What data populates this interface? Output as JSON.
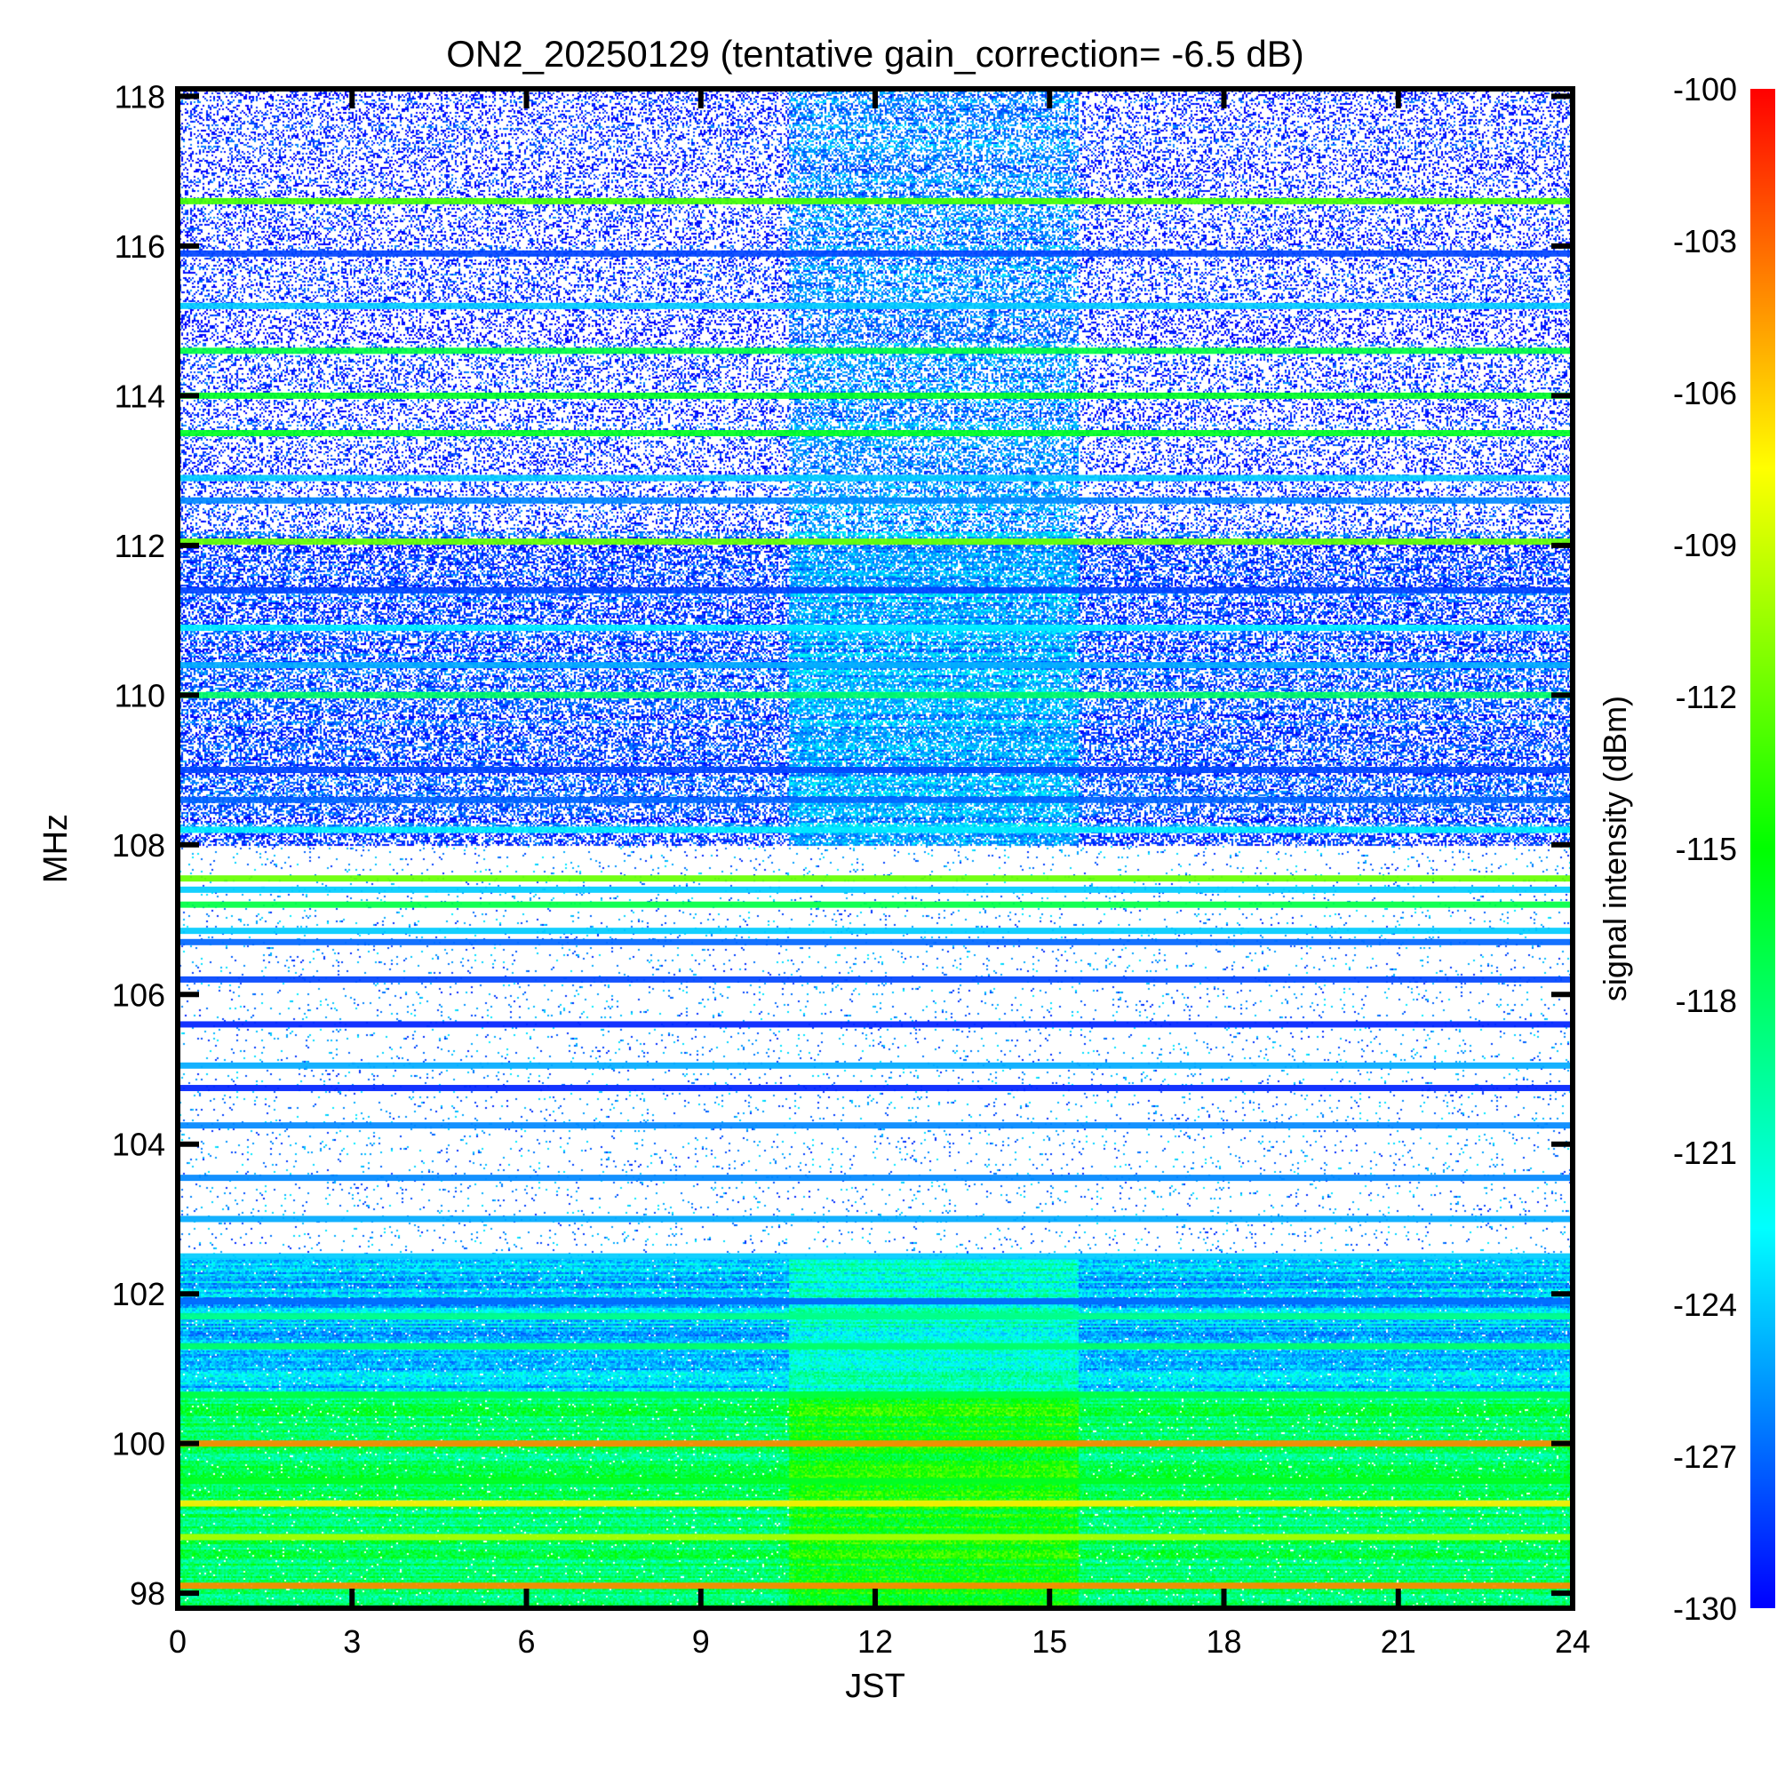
{
  "chart_data": {
    "type": "heatmap",
    "title": "ON2_20250129 (tentative gain_correction= -6.5 dB)",
    "xlabel": "JST",
    "ylabel": "MHz",
    "colorbar_label": "signal intensity (dBm)",
    "xlim": [
      0,
      24
    ],
    "ylim": [
      97.8,
      118.1
    ],
    "x_ticks": [
      0,
      3,
      6,
      9,
      12,
      15,
      18,
      21,
      24
    ],
    "y_ticks": [
      98,
      100,
      102,
      104,
      106,
      108,
      110,
      112,
      114,
      116,
      118
    ],
    "colorbar_range": [
      -130,
      -100
    ],
    "colorbar_ticks": [
      -100,
      -103,
      -106,
      -109,
      -112,
      -115,
      -118,
      -121,
      -124,
      -127,
      -130
    ],
    "colormap": [
      "#0000ff",
      "#0080ff",
      "#00ffff",
      "#00ff80",
      "#00ff00",
      "#80ff00",
      "#ffff00",
      "#ff8000",
      "#ff0000"
    ],
    "noise_floor_dbm": -130,
    "continuous_bands": [
      {
        "f": 116.6,
        "dbm": -113
      },
      {
        "f": 115.9,
        "dbm": -128
      },
      {
        "f": 115.2,
        "dbm": -124
      },
      {
        "f": 114.6,
        "dbm": -117
      },
      {
        "f": 114.0,
        "dbm": -116
      },
      {
        "f": 113.5,
        "dbm": -116
      },
      {
        "f": 112.9,
        "dbm": -124
      },
      {
        "f": 112.6,
        "dbm": -126
      },
      {
        "f": 112.05,
        "dbm": -112
      },
      {
        "f": 111.4,
        "dbm": -128
      },
      {
        "f": 110.9,
        "dbm": -123
      },
      {
        "f": 110.4,
        "dbm": -125
      },
      {
        "f": 110.0,
        "dbm": -118
      },
      {
        "f": 109.0,
        "dbm": -128
      },
      {
        "f": 108.6,
        "dbm": -127
      },
      {
        "f": 108.2,
        "dbm": -123
      },
      {
        "f": 107.55,
        "dbm": -112
      },
      {
        "f": 107.4,
        "dbm": -124
      },
      {
        "f": 107.2,
        "dbm": -117
      },
      {
        "f": 106.85,
        "dbm": -124
      },
      {
        "f": 106.7,
        "dbm": -127
      },
      {
        "f": 106.2,
        "dbm": -128
      },
      {
        "f": 105.6,
        "dbm": -129
      },
      {
        "f": 105.05,
        "dbm": -125
      },
      {
        "f": 104.75,
        "dbm": -129
      },
      {
        "f": 104.25,
        "dbm": -126
      },
      {
        "f": 103.55,
        "dbm": -126
      },
      {
        "f": 103.0,
        "dbm": -125
      },
      {
        "f": 102.5,
        "dbm": -124
      },
      {
        "f": 101.9,
        "dbm": -127
      },
      {
        "f": 101.7,
        "dbm": -119
      },
      {
        "f": 101.3,
        "dbm": -118
      },
      {
        "f": 100.65,
        "dbm": -117
      },
      {
        "f": 100.0,
        "dbm": -104
      },
      {
        "f": 99.5,
        "dbm": -116
      },
      {
        "f": 99.2,
        "dbm": -107
      },
      {
        "f": 98.75,
        "dbm": -110
      },
      {
        "f": 98.1,
        "dbm": -104
      }
    ],
    "diffuse_regions": [
      {
        "f_range": [
          97.8,
          100.7
        ],
        "dbm": -118,
        "description": "dense broadband"
      },
      {
        "f_range": [
          100.7,
          102.5
        ],
        "dbm": -124,
        "description": "dense broadband"
      },
      {
        "f_range": [
          108.0,
          112.2
        ],
        "dbm": -128,
        "description": "dense intermittent"
      },
      {
        "f_range": [
          112.2,
          118.1
        ],
        "dbm": -129,
        "description": "sparse intermittent"
      }
    ],
    "daytime_enhancement": {
      "x_range": [
        10.5,
        15.5
      ],
      "dbm_increase": 3
    }
  }
}
